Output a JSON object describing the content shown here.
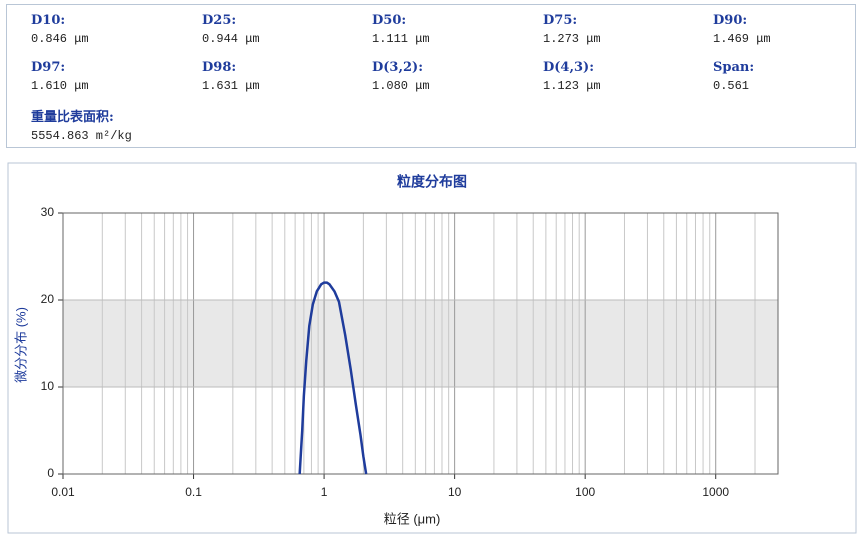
{
  "stats": {
    "rows": [
      [
        {
          "label": "D10:",
          "value": "0.846 μm"
        },
        {
          "label": "D25:",
          "value": "0.944 μm"
        },
        {
          "label": "D50:",
          "value": "1.111 μm"
        },
        {
          "label": "D75:",
          "value": "1.273 μm"
        },
        {
          "label": "D90:",
          "value": "1.469 μm"
        }
      ],
      [
        {
          "label": "D97:",
          "value": "1.610 μm"
        },
        {
          "label": "D98:",
          "value": "1.631 μm"
        },
        {
          "label": "D(3,2):",
          "value": "1.080 μm"
        },
        {
          "label": "D(4,3):",
          "value": "1.123 μm"
        },
        {
          "label": "Span:",
          "value": "0.561"
        }
      ],
      [
        {
          "label": "重量比表面积:",
          "value": "5554.863 m²/kg"
        }
      ]
    ]
  },
  "chart_data": {
    "type": "line",
    "title": "粒度分布图",
    "x_label": "粒径 (μm)",
    "y_label": "微分分布 (%)",
    "x": [
      0.65,
      0.68,
      0.7,
      0.73,
      0.77,
      0.82,
      0.88,
      0.95,
      1.0,
      1.05,
      1.1,
      1.2,
      1.3,
      1.45,
      1.6,
      1.75,
      1.9,
      2.0,
      2.1
    ],
    "values": [
      0,
      5,
      9,
      13,
      17,
      19.5,
      21,
      21.8,
      22,
      22,
      21.8,
      21,
      19.8,
      16,
      12,
      8,
      4.5,
      2,
      0
    ],
    "color": "#1f3c9c",
    "x_log": true,
    "grid": true,
    "shaded_band": [
      10,
      20
    ],
    "xlim": [
      0.01,
      3000
    ],
    "xticks": [
      0.01,
      0.1,
      1,
      10,
      100,
      1000
    ],
    "ylim": [
      0,
      30
    ],
    "yticks": [
      0,
      10,
      20,
      30
    ]
  }
}
